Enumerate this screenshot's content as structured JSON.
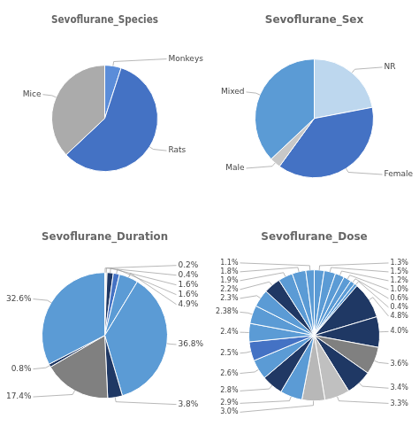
{
  "chart_data": [
    {
      "type": "pie",
      "title": "Sevoflurane_Species",
      "categories": [
        "Monkeys",
        "Rats",
        "Mice"
      ],
      "values": [
        5,
        58,
        37
      ],
      "colors": [
        "#5B8DD9",
        "#4472C4",
        "#ABABAB"
      ]
    },
    {
      "type": "pie",
      "title": "Sevoflurane_Sex",
      "categories": [
        "NR",
        "Female",
        "Male",
        "Mixed"
      ],
      "values": [
        22,
        38,
        3,
        37
      ],
      "colors": [
        "#BDD7EE",
        "#4472C4",
        "#C8C8C8",
        "#5B9BD5"
      ]
    },
    {
      "type": "pie",
      "title": "Sevoflurane_Duration",
      "values": [
        0.2,
        0.4,
        1.6,
        1.6,
        4.9,
        36.8,
        3.8,
        17.4,
        0.8,
        32.6
      ],
      "value_labels": [
        "0.2%",
        "0.4%",
        "1.6%",
        "1.6%",
        "4.9%",
        "36.8%",
        "3.8%",
        "17.4%",
        "0.8%",
        "32.6%"
      ],
      "colors": [
        "#5B9BD5",
        "#C0C0C0",
        "#203864",
        "#4472C4",
        "#5B9BD5",
        "#5B9BD5",
        "#1F3864",
        "#808080",
        "#203864",
        "#5B9BD5"
      ]
    },
    {
      "type": "pie",
      "title": "Sevoflurane_Dose",
      "values": [
        1.3,
        1.5,
        1.2,
        1.0,
        0.6,
        0.4,
        4.8,
        4.0,
        3.6,
        3.4,
        3.3,
        3.0,
        2.9,
        2.8,
        2.6,
        2.5,
        2.4,
        2.38,
        2.3,
        2.2,
        1.9,
        1.8,
        1.1
      ],
      "value_labels": [
        "1.3%",
        "1.5%",
        "1.2%",
        "1.0%",
        "0.6%",
        "0.4%",
        "4.8%",
        "4.0%",
        "3.6%",
        "3.4%",
        "3.3%",
        "3.0%",
        "2.9%",
        "2.8%",
        "2.6%",
        "2.5%",
        "2.4%",
        "2.38%",
        "2.3%",
        "2.2%",
        "1.9%",
        "1.8%",
        "1.1%"
      ],
      "colors": [
        "#5B9BD5",
        "#5B9BD5",
        "#5B9BD5",
        "#5B9BD5",
        "#5B9BD5",
        "#5B9BD5",
        "#1F3864",
        "#1F3864",
        "#808080",
        "#1F3864",
        "#C0C0C0",
        "#B8B8B8",
        "#5B9BD5",
        "#203864",
        "#5B9BD5",
        "#4472C4",
        "#5B9BD5",
        "#5B9BD5",
        "#5B9BD5",
        "#203864",
        "#5B9BD5",
        "#5B9BD5",
        "#5B9BD5"
      ]
    }
  ]
}
